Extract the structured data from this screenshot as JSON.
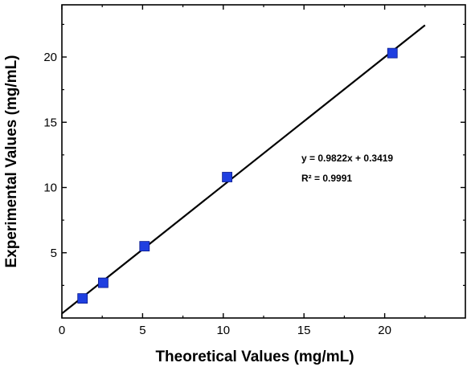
{
  "chart_data": {
    "type": "scatter",
    "xlabel": "Theoretical Values (mg/mL)",
    "ylabel": "Experimental Values (mg/mL)",
    "xlim": [
      0,
      25
    ],
    "ylim": [
      0,
      24
    ],
    "x_ticks": [
      0,
      5,
      10,
      15,
      20
    ],
    "y_ticks": [
      5,
      10,
      15,
      20
    ],
    "grid": false,
    "series": [
      {
        "marker": "square",
        "color": "#1f3fe0",
        "x": [
          1.28,
          2.56,
          5.12,
          10.24,
          20.48
        ],
        "y": [
          1.5,
          2.7,
          5.5,
          10.8,
          20.3
        ]
      }
    ],
    "fit_line": {
      "slope": 0.9822,
      "intercept": 0.3419,
      "x_range": [
        0,
        22.5
      ],
      "color": "#000000"
    },
    "annotations": {
      "equation": "y = 0.9822x + 0.3419",
      "r_squared": "R² = 0.9991"
    }
  }
}
